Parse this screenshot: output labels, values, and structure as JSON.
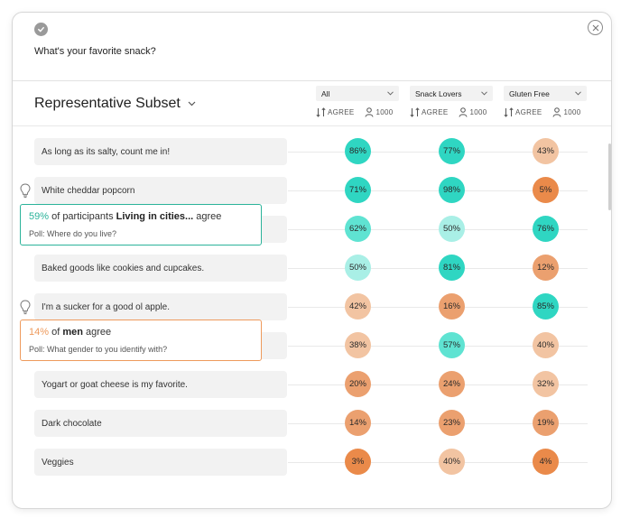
{
  "question": "What's your favorite snack?",
  "subset_label": "Representative Subset",
  "columns": [
    {
      "filter": "All",
      "sort_label": "AGREE",
      "count": "1000"
    },
    {
      "filter": "Snack Lovers",
      "sort_label": "AGREE",
      "count": "1000"
    },
    {
      "filter": "Gluten Free",
      "sort_label": "AGREE",
      "count": "1000"
    }
  ],
  "rows": [
    {
      "text": "As long as its salty, count me in!",
      "has_insight": false,
      "values": [
        "86%",
        "77%",
        "43%"
      ]
    },
    {
      "text": "White cheddar popcorn",
      "has_insight": true,
      "values": [
        "71%",
        "98%",
        "5%"
      ]
    },
    {
      "text": "",
      "has_insight": false,
      "values": [
        "62%",
        "50%",
        "76%"
      ]
    },
    {
      "text": "Baked goods like cookies and cupcakes.",
      "has_insight": false,
      "values": [
        "50%",
        "81%",
        "12%"
      ]
    },
    {
      "text": "I'm a sucker for a good ol apple.",
      "has_insight": true,
      "values": [
        "42%",
        "16%",
        "85%"
      ]
    },
    {
      "text": "",
      "has_insight": false,
      "values": [
        "38%",
        "57%",
        "40%"
      ]
    },
    {
      "text": "Yogart or goat cheese is my favorite.",
      "has_insight": false,
      "values": [
        "20%",
        "24%",
        "32%"
      ]
    },
    {
      "text": "Dark chocolate",
      "has_insight": false,
      "values": [
        "14%",
        "23%",
        "19%"
      ]
    },
    {
      "text": "Veggies",
      "has_insight": false,
      "values": [
        "3%",
        "40%",
        "4%"
      ]
    }
  ],
  "tooltips": [
    {
      "percent": "59%",
      "mid": " of participants ",
      "group": "Living in cities...",
      "tail": " agree",
      "poll": "Poll: Where do you live?",
      "color": "#2bb39a"
    },
    {
      "percent": "14%",
      "mid": " of ",
      "group": "men",
      "tail": " agree",
      "poll": "Poll: What gender to you identify with?",
      "color": "#ee9a5c"
    }
  ],
  "colors": {
    "high": "#2fd6c2",
    "mid_high": "#5fe3d2",
    "mid": "#a9efe6",
    "low_mid": "#f2c4a2",
    "low": "#eba06f",
    "lowest": "#ea8a4a"
  },
  "icons": [
    "check-icon",
    "close-icon",
    "chevron-down-icon",
    "sort-arrows-icon",
    "person-icon",
    "lightbulb-icon"
  ]
}
